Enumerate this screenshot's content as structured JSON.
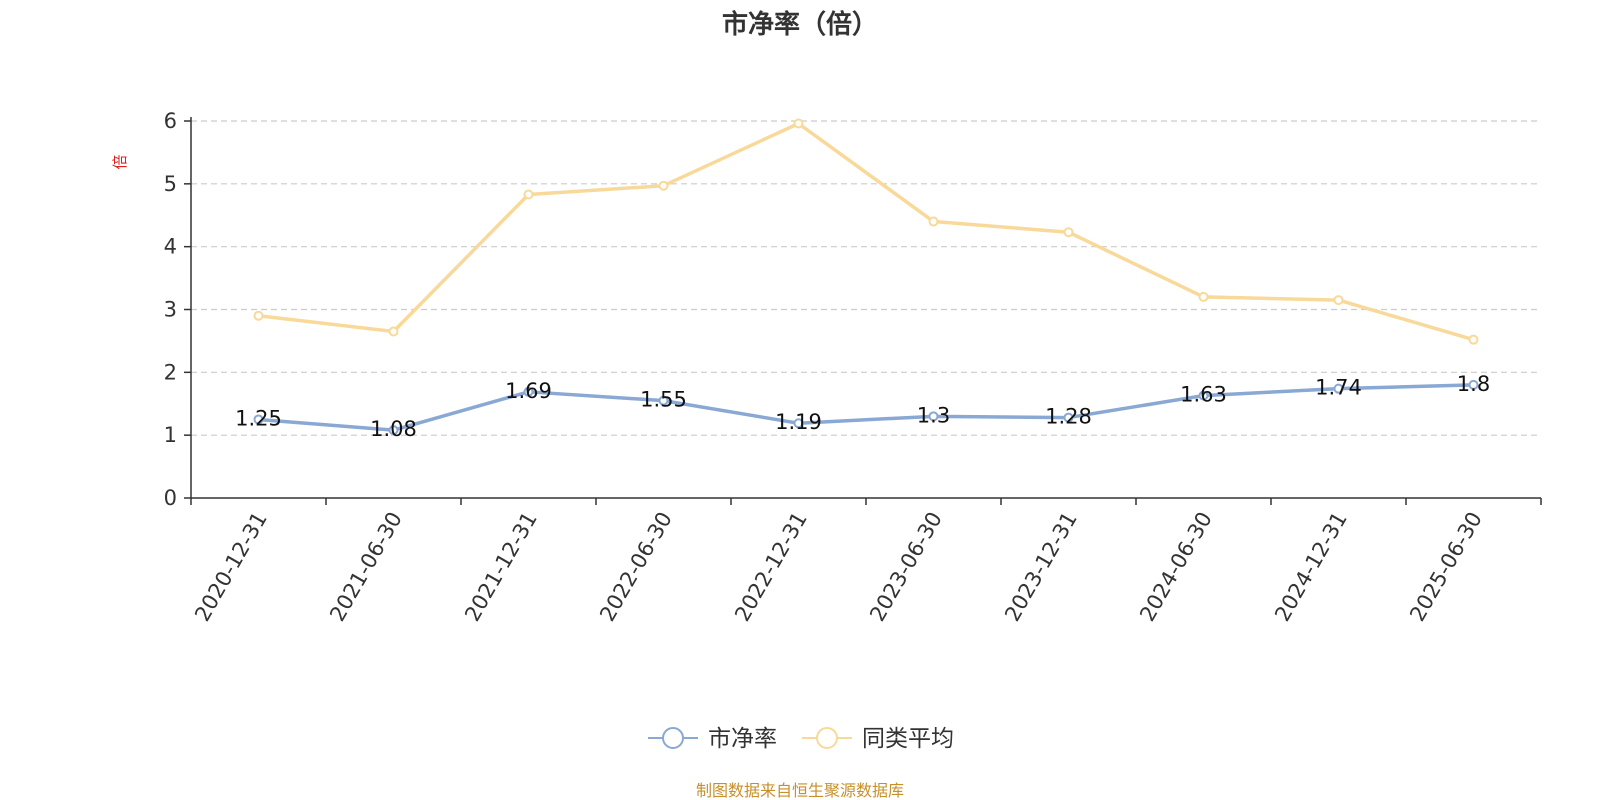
{
  "chart_data": {
    "type": "line",
    "title": "市净率（倍）",
    "ylabel": "倍",
    "xlabel": "",
    "categories": [
      "2020-12-31",
      "2021-06-30",
      "2021-12-31",
      "2022-06-30",
      "2022-12-31",
      "2023-06-30",
      "2023-12-31",
      "2024-06-30",
      "2024-12-31",
      "2025-06-30"
    ],
    "ylim": [
      0,
      6
    ],
    "yticks": [
      "0",
      "1",
      "2",
      "3",
      "4",
      "5",
      "6"
    ],
    "grid": true,
    "legend_position": "bottom",
    "series": [
      {
        "name": "市净率",
        "color": "#8aa8d4",
        "values": [
          1.25,
          1.08,
          1.69,
          1.55,
          1.19,
          1.3,
          1.28,
          1.63,
          1.74,
          1.8
        ],
        "labels": [
          "1.25",
          "1.08",
          "1.69",
          "1.55",
          "1.19",
          "1.3",
          "1.28",
          "1.63",
          "1.74",
          "1.8"
        ]
      },
      {
        "name": "同类平均",
        "color": "#f9d999",
        "values": [
          2.9,
          2.65,
          4.83,
          4.97,
          5.96,
          4.4,
          4.23,
          3.2,
          3.15,
          2.52
        ]
      }
    ]
  },
  "footer": {
    "source": "制图数据来自恒生聚源数据库"
  }
}
